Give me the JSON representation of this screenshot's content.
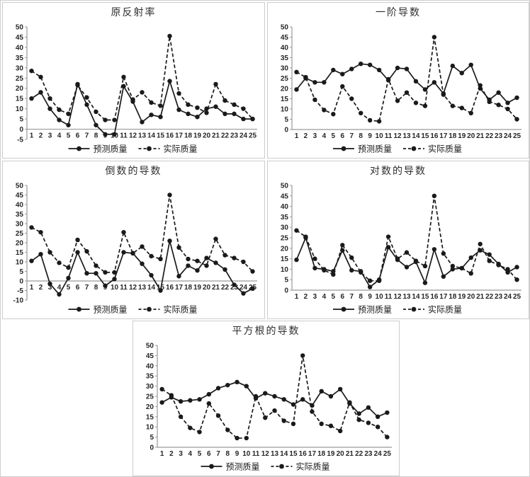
{
  "page": {
    "background": "#ffffff",
    "panel_border_color": "#cccccc",
    "line_color": "#1a1a1a",
    "axis_color": "#9a9a9a",
    "tick_label_color": "#262626"
  },
  "chart_data": [
    {
      "type": "line",
      "title": "原反射率",
      "x": [
        1,
        2,
        3,
        4,
        5,
        6,
        7,
        8,
        9,
        10,
        11,
        12,
        13,
        14,
        15,
        16,
        17,
        18,
        19,
        20,
        21,
        22,
        23,
        24,
        25
      ],
      "ylim": [
        -5,
        50
      ],
      "ytick_step": 5,
      "grid": false,
      "legend_position": "bottom",
      "series": [
        {
          "name": "预测质量",
          "style": "solid",
          "values": [
            15,
            18,
            10,
            4.5,
            2,
            22,
            12,
            2,
            -2.5,
            -2.5,
            21,
            13.5,
            3.5,
            7,
            6,
            23.5,
            9.5,
            7.5,
            6,
            10,
            11,
            7.5,
            7.5,
            5,
            5
          ]
        },
        {
          "name": "实际质量",
          "style": "dashed",
          "values": [
            28.5,
            25.5,
            15,
            9.5,
            7.5,
            21.5,
            15.5,
            8.5,
            4.5,
            4.5,
            25.5,
            14.5,
            18,
            13,
            11.5,
            45.5,
            17.5,
            12,
            10.5,
            8,
            22,
            14,
            12,
            10,
            5
          ]
        }
      ]
    },
    {
      "type": "line",
      "title": "一阶导数",
      "x": [
        1,
        2,
        3,
        4,
        5,
        6,
        7,
        8,
        9,
        10,
        11,
        12,
        13,
        14,
        15,
        16,
        17,
        18,
        19,
        20,
        21,
        22,
        23,
        24,
        25
      ],
      "ylim": [
        0,
        50
      ],
      "ytick_step": 5,
      "grid": false,
      "legend_position": "bottom",
      "series": [
        {
          "name": "预测质量",
          "style": "solid",
          "values": [
            19.5,
            25,
            23,
            23,
            29,
            27,
            29.5,
            32,
            31.5,
            29,
            24,
            30,
            29.5,
            23.5,
            19.5,
            23,
            17.5,
            31,
            27.5,
            31.5,
            20,
            14.5,
            18,
            13,
            15.5
          ]
        },
        {
          "name": "实际质量",
          "style": "dashed",
          "values": [
            28,
            25.5,
            14.5,
            9.5,
            7.5,
            21,
            15,
            8,
            4.5,
            4,
            24.5,
            14,
            18,
            13,
            11.5,
            45,
            17,
            11.5,
            10.5,
            8,
            21.5,
            13.5,
            12,
            10,
            5
          ]
        }
      ]
    },
    {
      "type": "line",
      "title": "倒数的导数",
      "x": [
        1,
        2,
        3,
        4,
        5,
        6,
        7,
        8,
        9,
        10,
        11,
        12,
        13,
        14,
        15,
        16,
        17,
        18,
        19,
        20,
        21,
        22,
        23,
        24,
        25
      ],
      "ylim": [
        -10,
        50
      ],
      "ytick_step": 5,
      "grid": false,
      "legend_position": "bottom",
      "series": [
        {
          "name": "预测质量",
          "style": "solid",
          "values": [
            10.5,
            14,
            -1.5,
            -7,
            1.5,
            15,
            4,
            4,
            -2.5,
            1,
            15,
            14.5,
            9,
            3,
            -5,
            21,
            2.5,
            8,
            5.5,
            12,
            9.5,
            6,
            -2,
            -6.5,
            -4
          ]
        },
        {
          "name": "实际质量",
          "style": "dashed",
          "values": [
            28,
            25.5,
            15,
            9.5,
            7,
            21.5,
            15.5,
            8,
            4.5,
            4.5,
            25.5,
            14.5,
            18,
            13,
            11.5,
            45,
            17.5,
            11.5,
            10.5,
            8,
            22,
            13.5,
            12,
            10,
            5
          ]
        }
      ]
    },
    {
      "type": "line",
      "title": "对数的导数",
      "x": [
        1,
        2,
        3,
        4,
        5,
        6,
        7,
        8,
        9,
        10,
        11,
        12,
        13,
        14,
        15,
        16,
        17,
        18,
        19,
        20,
        21,
        22,
        23,
        24,
        25
      ],
      "ylim": [
        0,
        50
      ],
      "ytick_step": 5,
      "grid": false,
      "legend_position": "bottom",
      "series": [
        {
          "name": "预测质量",
          "style": "solid",
          "values": [
            14.5,
            25,
            10.5,
            10,
            9,
            19,
            9.5,
            9,
            1.5,
            5,
            20.5,
            14.5,
            11,
            13.5,
            3.5,
            19.5,
            6.5,
            10,
            10.5,
            15.5,
            19,
            17,
            12.5,
            8.5,
            11
          ]
        },
        {
          "name": "实际质量",
          "style": "dashed",
          "values": [
            28.5,
            25.5,
            15,
            9.5,
            7.5,
            21.5,
            15.5,
            8.5,
            4.5,
            4.5,
            25.5,
            15,
            18,
            14,
            11.5,
            45,
            17.5,
            11.5,
            10.5,
            8,
            22,
            14,
            12,
            10,
            5
          ]
        }
      ]
    },
    {
      "type": "line",
      "title": "平方根的导数",
      "x": [
        1,
        2,
        3,
        4,
        5,
        6,
        7,
        8,
        9,
        10,
        11,
        12,
        13,
        14,
        15,
        16,
        17,
        18,
        19,
        20,
        21,
        22,
        23,
        24,
        25
      ],
      "ylim": [
        0,
        50
      ],
      "ytick_step": 5,
      "grid": false,
      "legend_position": "bottom",
      "series": [
        {
          "name": "预测质量",
          "style": "solid",
          "values": [
            22,
            24.5,
            22.5,
            23,
            23.5,
            26,
            29,
            30.5,
            32,
            30,
            24,
            26.5,
            25,
            23.5,
            21,
            23.5,
            20.5,
            27.5,
            25,
            28.5,
            21.5,
            16.5,
            19.5,
            15,
            17
          ]
        },
        {
          "name": "实际质量",
          "style": "dashed",
          "values": [
            28.5,
            25.5,
            15,
            9.5,
            7.5,
            21.5,
            15.5,
            8.5,
            4.5,
            4.5,
            25,
            14.5,
            18,
            13,
            11.5,
            45,
            17.5,
            11.5,
            10.5,
            8,
            22,
            13.5,
            12,
            10,
            5
          ]
        }
      ]
    }
  ]
}
